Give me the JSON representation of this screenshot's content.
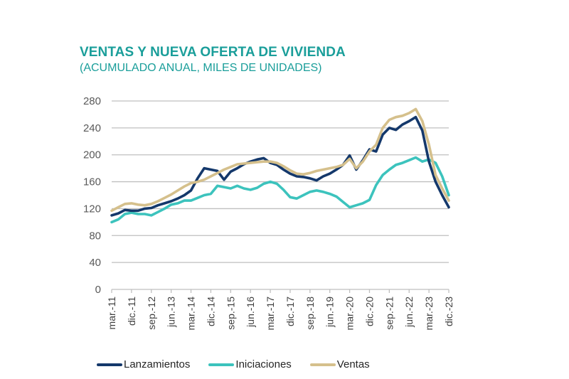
{
  "chart_data": {
    "type": "line",
    "title": "VENTAS Y NUEVA OFERTA DE VIVIENDA",
    "subtitle": "(ACUMULADO ANUAL, MILES DE UNIDADES)",
    "xlabel": "",
    "ylabel": "",
    "ylim": [
      0,
      280
    ],
    "yticks": [
      0,
      40,
      80,
      120,
      160,
      200,
      240,
      280
    ],
    "grid": true,
    "legend_position": "bottom",
    "x_tick_labels": [
      "mar.-11",
      "dic.-11",
      "sep.-12",
      "jun.-13",
      "mar.-14",
      "dic.-14",
      "sep.-15",
      "jun.-16",
      "mar.-17",
      "dic.-17",
      "sep.-18",
      "jun.-19",
      "mar.-20",
      "dic.-20",
      "sep.-21",
      "jun.-22",
      "mar.-23",
      "dic.-23"
    ],
    "x": [
      "mar.-11",
      "jun.-11",
      "sep.-11",
      "dic.-11",
      "mar.-12",
      "jun.-12",
      "sep.-12",
      "dic.-12",
      "mar.-13",
      "jun.-13",
      "sep.-13",
      "dic.-13",
      "mar.-14",
      "jun.-14",
      "sep.-14",
      "dic.-14",
      "mar.-15",
      "jun.-15",
      "sep.-15",
      "dic.-15",
      "mar.-16",
      "jun.-16",
      "sep.-16",
      "dic.-16",
      "mar.-17",
      "jun.-17",
      "sep.-17",
      "dic.-17",
      "mar.-18",
      "jun.-18",
      "sep.-18",
      "dic.-18",
      "mar.-19",
      "jun.-19",
      "sep.-19",
      "dic.-19",
      "mar.-20",
      "jun.-20",
      "sep.-20",
      "dic.-20",
      "mar.-21",
      "jun.-21",
      "sep.-21",
      "dic.-21",
      "mar.-22",
      "jun.-22",
      "sep.-22",
      "dic.-22",
      "mar.-23",
      "jun.-23",
      "sep.-23",
      "dic.-23"
    ],
    "series": [
      {
        "name": "Lanzamientos",
        "color": "#14386b",
        "values": [
          110,
          113,
          118,
          117,
          117,
          120,
          121,
          125,
          128,
          131,
          135,
          140,
          147,
          165,
          180,
          178,
          176,
          163,
          175,
          180,
          186,
          190,
          193,
          195,
          188,
          185,
          178,
          172,
          168,
          167,
          165,
          162,
          168,
          172,
          178,
          185,
          199,
          178,
          192,
          208,
          205,
          230,
          240,
          237,
          245,
          250,
          256,
          236,
          190,
          160,
          140,
          122
        ]
      },
      {
        "name": "Iniciaciones",
        "color": "#3cc3bd",
        "values": [
          100,
          104,
          112,
          114,
          112,
          112,
          110,
          115,
          120,
          126,
          128,
          132,
          132,
          136,
          140,
          142,
          154,
          152,
          150,
          154,
          150,
          148,
          151,
          157,
          160,
          157,
          148,
          137,
          135,
          140,
          145,
          147,
          145,
          142,
          138,
          130,
          122,
          125,
          128,
          133,
          155,
          170,
          178,
          185,
          188,
          192,
          196,
          190,
          193,
          188,
          168,
          140
        ]
      },
      {
        "name": "Ventas",
        "color": "#d5c08c",
        "values": [
          117,
          122,
          127,
          128,
          126,
          125,
          127,
          131,
          136,
          141,
          147,
          153,
          158,
          160,
          163,
          168,
          173,
          178,
          182,
          186,
          187,
          188,
          189,
          190,
          190,
          188,
          183,
          177,
          172,
          171,
          173,
          176,
          178,
          180,
          182,
          185,
          194,
          180,
          190,
          205,
          215,
          240,
          252,
          256,
          258,
          262,
          268,
          250,
          215,
          170,
          150,
          132
        ]
      }
    ]
  }
}
